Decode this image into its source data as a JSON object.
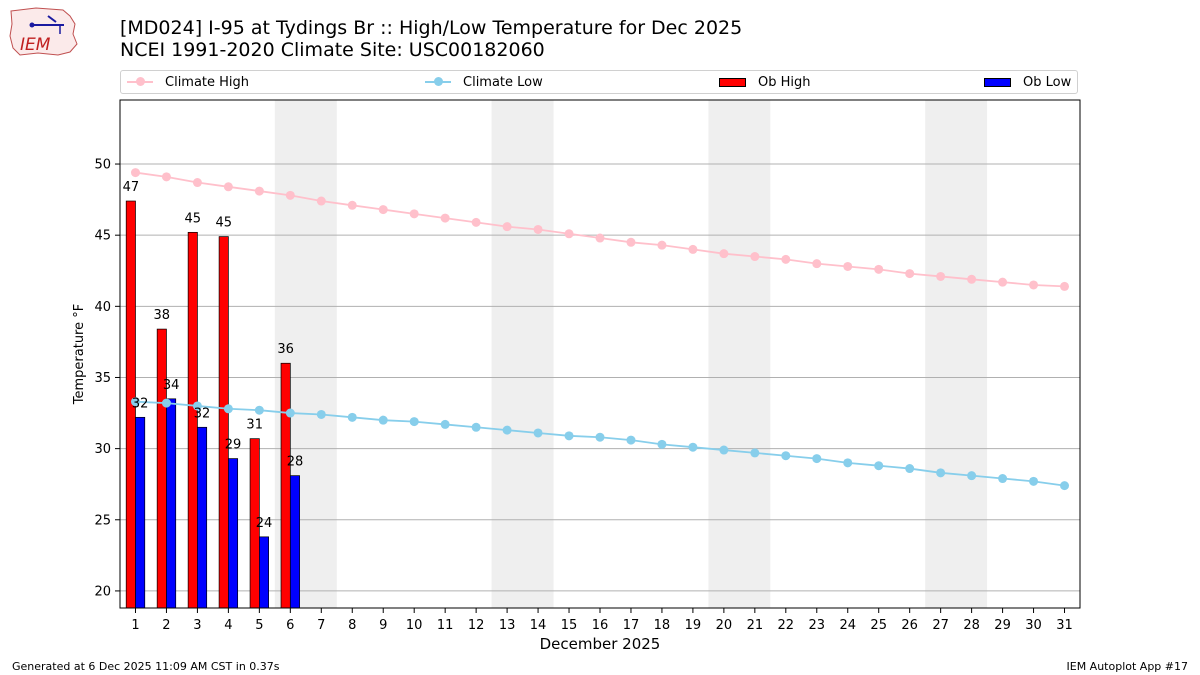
{
  "logo": {
    "text": "IEM"
  },
  "title": {
    "line1": "[MD024] I-95 at Tydings Br :: High/Low Temperature for Dec 2025",
    "line2": "NCEI 1991-2020 Climate Site: USC00182060"
  },
  "legend": {
    "climate_high": "Climate High",
    "climate_low": "Climate Low",
    "ob_high": "Ob High",
    "ob_low": "Ob Low"
  },
  "footer": {
    "left": "Generated at 6 Dec 2025 11:09 AM CST in 0.37s",
    "right": "IEM Autoplot App #17"
  },
  "chart_data": {
    "type": "bar",
    "xlabel": "December 2025",
    "ylabel": "Temperature °F",
    "xlim": [
      0.5,
      31.5
    ],
    "ylim": [
      18.8,
      54.5
    ],
    "yticks": [
      20,
      25,
      30,
      35,
      40,
      45,
      50
    ],
    "days": [
      1,
      2,
      3,
      4,
      5,
      6,
      7,
      8,
      9,
      10,
      11,
      12,
      13,
      14,
      15,
      16,
      17,
      18,
      19,
      20,
      21,
      22,
      23,
      24,
      25,
      26,
      27,
      28,
      29,
      30,
      31
    ],
    "weekend_shading": [
      [
        6,
        7
      ],
      [
        13,
        14
      ],
      [
        20,
        21
      ],
      [
        27,
        28
      ]
    ],
    "grid": "y",
    "legend_position": "top",
    "series": [
      {
        "name": "Climate High",
        "kind": "line",
        "color": "#ffc0cb",
        "values": [
          49.4,
          49.1,
          48.7,
          48.4,
          48.1,
          47.8,
          47.4,
          47.1,
          46.8,
          46.5,
          46.2,
          45.9,
          45.6,
          45.4,
          45.1,
          44.8,
          44.5,
          44.3,
          44.0,
          43.7,
          43.5,
          43.3,
          43.0,
          42.8,
          42.6,
          42.3,
          42.1,
          41.9,
          41.7,
          41.5,
          41.4
        ]
      },
      {
        "name": "Climate Low",
        "kind": "line",
        "color": "#87ceeb",
        "values": [
          33.3,
          33.2,
          33.0,
          32.8,
          32.7,
          32.5,
          32.4,
          32.2,
          32.0,
          31.9,
          31.7,
          31.5,
          31.3,
          31.1,
          30.9,
          30.8,
          30.6,
          30.3,
          30.1,
          29.9,
          29.7,
          29.5,
          29.3,
          29.0,
          28.8,
          28.6,
          28.3,
          28.1,
          27.9,
          27.7,
          27.4
        ]
      },
      {
        "name": "Ob High",
        "kind": "bar",
        "color": "#ff0000",
        "values": [
          47.4,
          38.4,
          45.2,
          44.9,
          30.7,
          36.0
        ],
        "labels": [
          "47",
          "38",
          "45",
          "45",
          "31",
          "36"
        ]
      },
      {
        "name": "Ob Low",
        "kind": "bar",
        "color": "#0000ff",
        "values": [
          32.2,
          33.5,
          31.5,
          29.3,
          23.8,
          28.1
        ],
        "labels": [
          "32",
          "34",
          "32",
          "29",
          "24",
          "28"
        ]
      }
    ]
  }
}
